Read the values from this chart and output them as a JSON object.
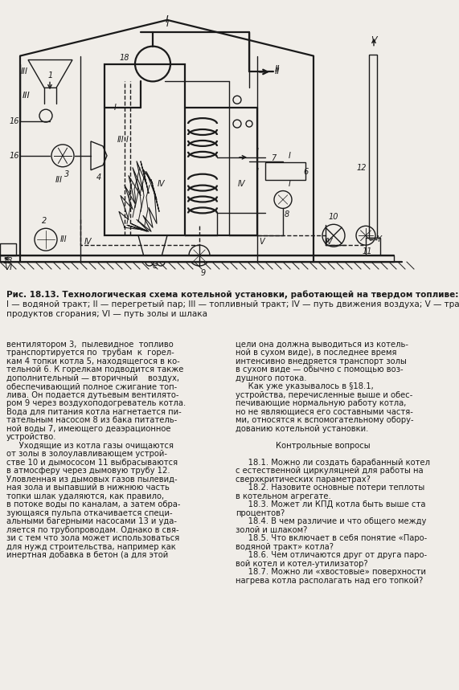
{
  "title": "Рис. 18.13. Технологическая схема котельной установки, работающей на твердом топливе:",
  "legend_line1": "I — водяной тракт; II — перегретый пар; III — топливный тракт; IV — путь движения воздуха; V — тракт",
  "legend_line2": "продуктов сгорания; VI — путь золы и шлака",
  "text_col1": [
    "вентилятором 3,  пылевидное  топливо",
    "транспортируется по  трубам  к  горел-",
    "кам 4 топки котла 5, находящегося в ко-",
    "тельной 6. К горелкам подводится также",
    "дополнительный — вторичный    воздух,",
    "обеспечивающий полное сжигание топ-",
    "лива. Он подается дутьевым вентилято-",
    "ром 9 через воздухоподогреватель котла.",
    "Вода для питания котла нагнетается пи-",
    "тательным насосом 8 из бака питатель-",
    "ной воды 7, имеющего деаэрационное",
    "устройство.",
    "     Уходящие из котла газы очищаются",
    "от золы в золоулавливающем устрой-",
    "стве 10 и дымососом 11 выбрасываются",
    "в атмосферу через дымовую трубу 12.",
    "Уловленная из дымовых газов пылевид-",
    "ная зола и выпавший в нижнюю часть",
    "топки шлак удаляются, как правило,",
    "в потоке воды по каналам, а затем обра-",
    "зующаяся пульпа откачивается специ-",
    "альными багерными насосами 13 и уда-",
    "ляется по трубопроводам. Однако в свя-",
    "зи с тем что зола может использоваться",
    "для нужд строительства, например как",
    "инертная добавка в бетон (а для этой"
  ],
  "text_col2": [
    "цели она должна выводиться из котель-",
    "ной в сухом виде), в последнее время",
    "интенсивно внедряется транспорт золы",
    "в сухом виде — обычно с помощью воз-",
    "душного потока.",
    "     Как уже указывалось в §18.1,",
    "устройства, перечисленные выше и обес-",
    "печивающие нормальную работу котла,",
    "но не являющиеся его составными частя-",
    "ми, относятся к вспомогательному обору-",
    "дованию котельной установки.",
    "",
    "                Контрольные вопросы",
    "",
    "     18.1. Можно ли создать барабанный котел",
    "с естественной циркуляцней для работы на",
    "сверхкритических параметрах?",
    "     18.2. Назовите основные потери теплоты",
    "в котельном агрегате.",
    "     18.3. Может ли КПД котла быть выше ста",
    "процентов?",
    "     18.4. В чем различие и что общего между",
    "золой и шлаком?",
    "     18.5. Что включает в себя понятие «Паро-",
    "водяной тракт» котла?",
    "     18.6. Чем отличаются друг от друга паро-",
    "вой котел и котел-утилизатор?",
    "     18.7. Можно ли «хвостовые» поверхности",
    "нагрева котла располагать над его топкой?"
  ],
  "bg_color": "#f0ede8",
  "text_color": "#1a1a1a",
  "line_color": "#1a1a1a"
}
